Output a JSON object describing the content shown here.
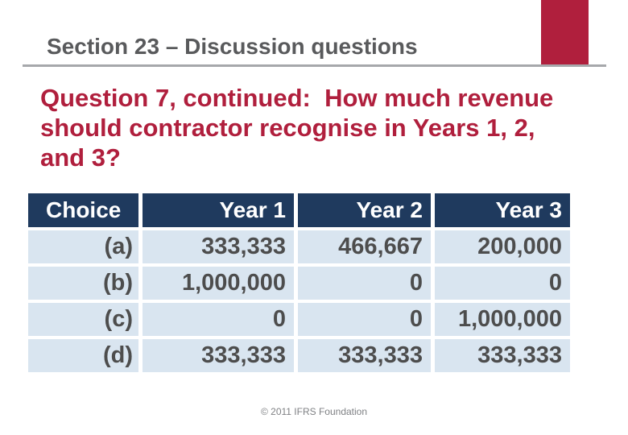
{
  "slide": {
    "title": "Section 23 – Discussion questions",
    "question": {
      "text": "Question 7, continued:  How much revenue should contractor recognise in Years 1, 2, and 3?",
      "lines": [
        "Question 7, continued:  How much revenue",
        "should contractor recognise in Years 1, 2,",
        "and 3?"
      ]
    },
    "footer": "© 2011 IFRS Foundation"
  },
  "table": {
    "columns": [
      "Choice",
      "Year 1",
      "Year 2",
      "Year 3"
    ],
    "rows": [
      [
        "(a)",
        "333,333",
        "466,667",
        "200,000"
      ],
      [
        "(b)",
        "1,000,000",
        "0",
        "0"
      ],
      [
        "(c)",
        "0",
        "0",
        "1,000,000"
      ],
      [
        "(d)",
        "333,333",
        "333,333",
        "333,333"
      ]
    ]
  },
  "colors": {
    "accent_red": "#B01F3D",
    "table_header_navy": "#1F3A5E",
    "table_row_blue": "#D9E5F0",
    "title_gray": "#595A5C",
    "rule_gray": "#A6A8AB",
    "cell_text_gray": "#4D4D4D",
    "footer_gray": "#7F8184"
  }
}
